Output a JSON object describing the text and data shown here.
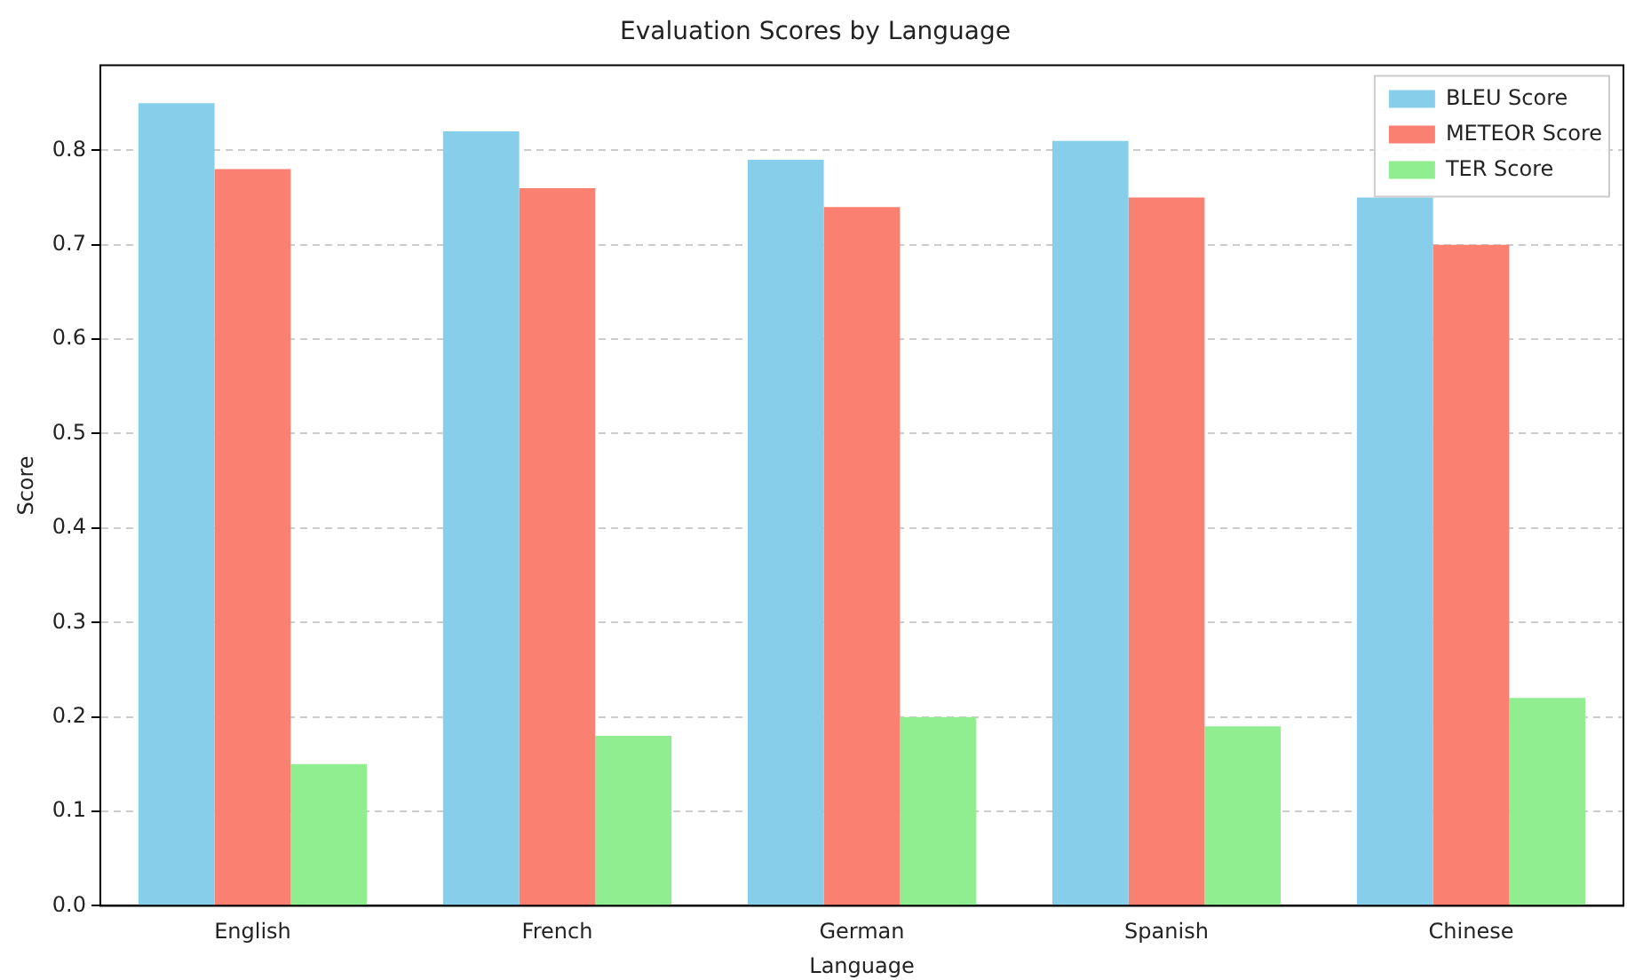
{
  "chart_data": {
    "type": "bar",
    "title": "Evaluation Scores by Language",
    "xlabel": "Language",
    "ylabel": "Score",
    "categories": [
      "English",
      "French",
      "German",
      "Spanish",
      "Chinese"
    ],
    "series": [
      {
        "name": "BLEU Score",
        "color": "#87ceeb",
        "values": [
          0.85,
          0.82,
          0.79,
          0.81,
          0.75
        ]
      },
      {
        "name": "METEOR Score",
        "color": "#fa8072",
        "values": [
          0.78,
          0.76,
          0.74,
          0.75,
          0.7
        ]
      },
      {
        "name": "TER Score",
        "color": "#90ee90",
        "values": [
          0.15,
          0.18,
          0.2,
          0.19,
          0.22
        ]
      }
    ],
    "ylim": [
      0,
      0.89
    ],
    "yticks": [
      {
        "value": 0,
        "label": "0.0"
      },
      0.1,
      0.2,
      0.3,
      0.4,
      0.5,
      0.6,
      0.7,
      0.8
    ],
    "grid": "y",
    "legend": "top right"
  }
}
